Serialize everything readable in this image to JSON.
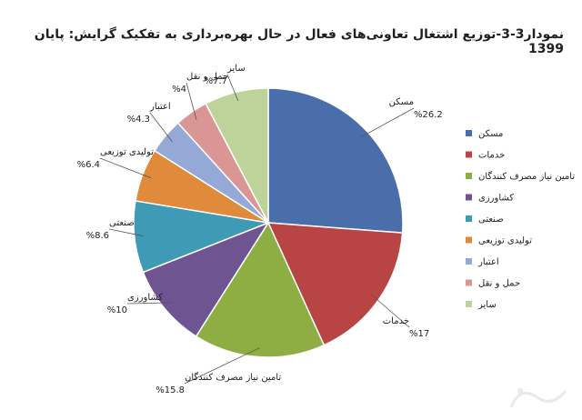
{
  "chart_data": {
    "type": "pie",
    "title": "نمودار3-3-توزیع اشتغال تعاونی‌های فعال در حال بهره‌برداری به تفکیک گرایش: پایان 1399",
    "slices": [
      {
        "name": "مسکن",
        "value": 26.2,
        "value_label": "%26.2",
        "color": "#4a6ea9"
      },
      {
        "name": "خدمات",
        "value": 17,
        "value_label": "%17",
        "color": "#b84543"
      },
      {
        "name": "تامین نیاز مصرف کنندگان",
        "value": 15.8,
        "value_label": "%15.8",
        "color": "#8eae44"
      },
      {
        "name": "کشاورزی",
        "value": 10,
        "value_label": "%10",
        "color": "#6e5592"
      },
      {
        "name": "صنعتی",
        "value": 8.6,
        "value_label": "%8.6",
        "color": "#3f9bb5"
      },
      {
        "name": "تولیدی توزیعی",
        "value": 6.4,
        "value_label": "%6.4",
        "color": "#e08a3c"
      },
      {
        "name": "اعتبار",
        "value": 4.3,
        "value_label": "%4.3",
        "color": "#94a9d6"
      },
      {
        "name": "حمل و نقل",
        "value": 4,
        "value_label": "%4",
        "color": "#d99695"
      },
      {
        "name": "سایر",
        "value": 7.7,
        "value_label": "%7.7",
        "color": "#bdd39a"
      }
    ],
    "legend_position": "right"
  }
}
